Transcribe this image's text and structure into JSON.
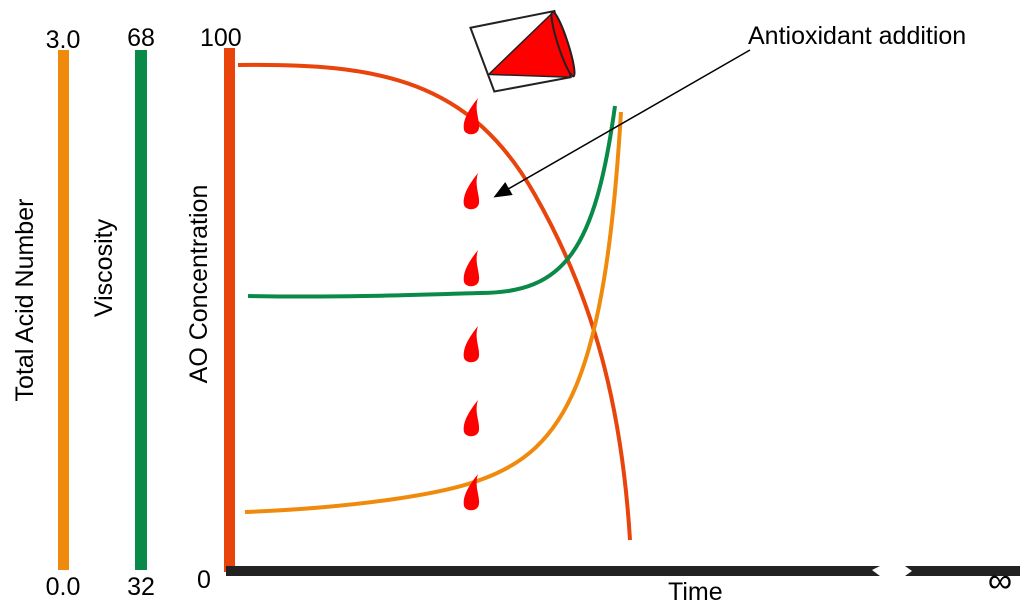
{
  "axes": [
    {
      "label": "Total Acid Number",
      "top": "3.0",
      "bottom": "0.0"
    },
    {
      "label": "Viscosity",
      "top": "68",
      "bottom": "32"
    },
    {
      "label": "AO Concentration",
      "top": "100",
      "bottom": "0"
    }
  ],
  "x_axis": {
    "label": "Time",
    "end": "∞"
  },
  "annotation": "Antioxidant addition"
}
